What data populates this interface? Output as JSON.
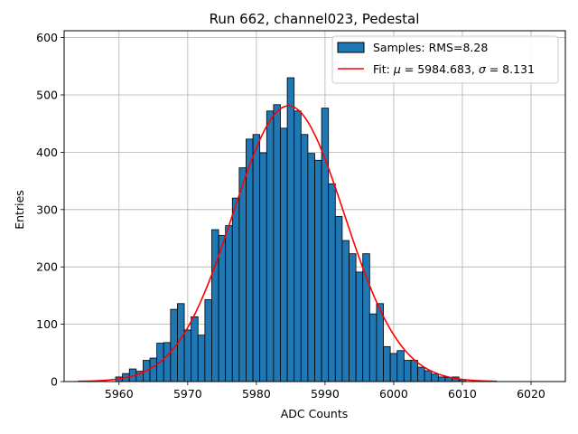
{
  "chart_data": {
    "type": "bar",
    "title": "Run 662, channel023, Pedestal",
    "xlabel": "ADC Counts",
    "ylabel": "Entries",
    "xlim": [
      5952,
      6025
    ],
    "ylim": [
      0,
      612
    ],
    "grid": true,
    "x_ticks": [
      5960,
      5970,
      5980,
      5990,
      6000,
      6010,
      6020
    ],
    "y_ticks": [
      0,
      100,
      200,
      300,
      400,
      500,
      600
    ],
    "legend_position": "top-right",
    "bin_width": 1,
    "series": [
      {
        "name": "Samples: RMS=8.28",
        "kind": "histogram",
        "color": "#1f77b4",
        "edge_color": "#000000",
        "bins": [
          5960,
          5961,
          5962,
          5963,
          5964,
          5965,
          5966,
          5967,
          5968,
          5969,
          5970,
          5971,
          5972,
          5973,
          5974,
          5975,
          5976,
          5977,
          5978,
          5979,
          5980,
          5981,
          5982,
          5983,
          5984,
          5985,
          5986,
          5987,
          5988,
          5989,
          5990,
          5991,
          5992,
          5993,
          5994,
          5995,
          5996,
          5997,
          5998,
          5999,
          6000,
          6001,
          6002,
          6003,
          6004,
          6005,
          6006,
          6007,
          6008,
          6009,
          6010
        ],
        "values": [
          8,
          14,
          22,
          18,
          37,
          41,
          67,
          68,
          126,
          136,
          90,
          113,
          81,
          143,
          265,
          255,
          272,
          320,
          373,
          423,
          431,
          399,
          472,
          483,
          442,
          530,
          472,
          431,
          398,
          386,
          477,
          345,
          288,
          246,
          223,
          191,
          223,
          118,
          136,
          61,
          49,
          54,
          37,
          37,
          25,
          19,
          13,
          8,
          7,
          8,
          3
        ]
      },
      {
        "name": "Fit: μ = 5984.683, σ = 8.131",
        "kind": "line",
        "color": "#ff0000",
        "mu": 5984.683,
        "sigma": 8.131,
        "amplitude": 481,
        "x_range": [
          5954,
          6015
        ]
      }
    ],
    "legend": [
      {
        "label_prefix": "Samples: RMS=8.28",
        "kind": "patch"
      },
      {
        "label_prefix": "Fit: ",
        "mu_symbol": "μ",
        "mu_value": " = 5984.683, ",
        "sigma_symbol": "σ",
        "sigma_value": " = 8.131",
        "kind": "line"
      }
    ]
  }
}
